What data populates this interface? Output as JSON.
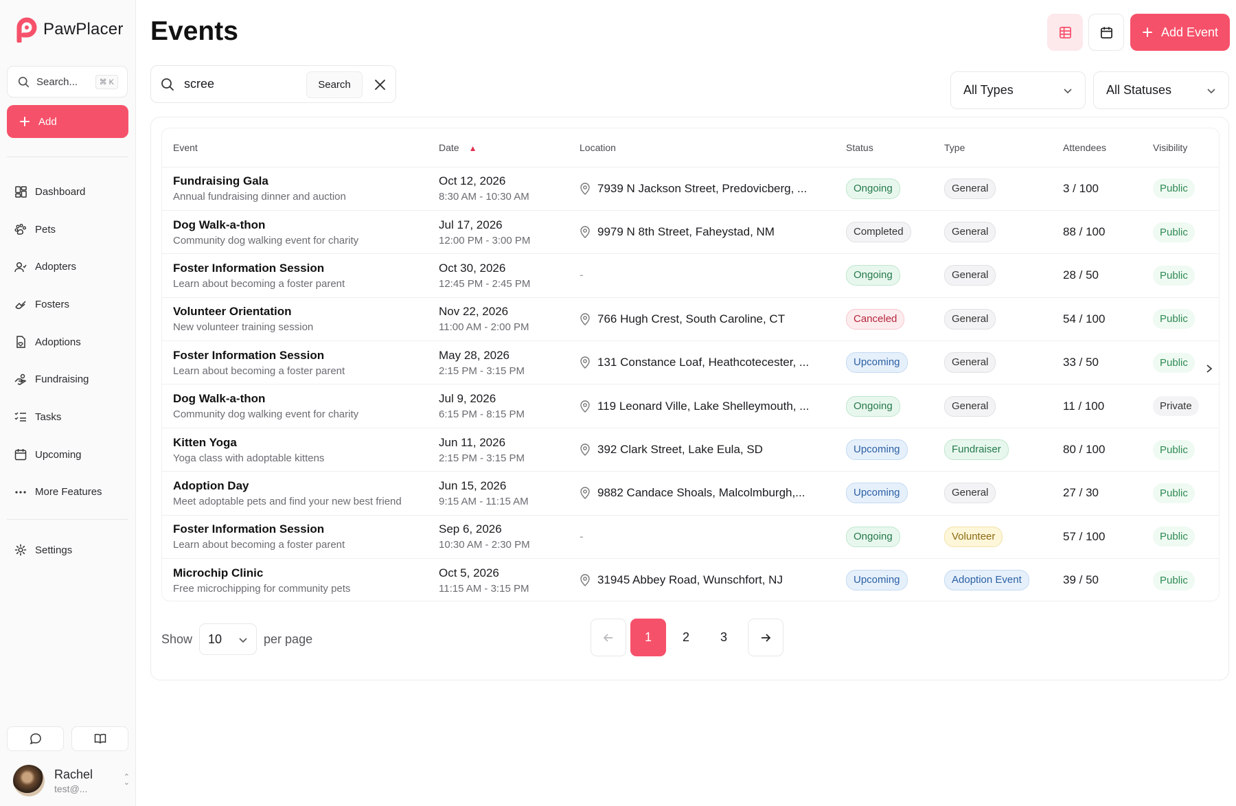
{
  "app": {
    "name": "PawPlacer",
    "brand_color": "#f6516a"
  },
  "sidebar": {
    "search_placeholder": "Search...",
    "search_shortcut": "⌘ K",
    "add_label": "Add",
    "items": [
      {
        "label": "Dashboard",
        "icon": "dashboard-icon"
      },
      {
        "label": "Pets",
        "icon": "paw-icon"
      },
      {
        "label": "Adopters",
        "icon": "adopter-icon"
      },
      {
        "label": "Fosters",
        "icon": "foster-icon"
      },
      {
        "label": "Adoptions",
        "icon": "adoption-icon"
      },
      {
        "label": "Fundraising",
        "icon": "fundraising-icon"
      },
      {
        "label": "Tasks",
        "icon": "tasks-icon"
      },
      {
        "label": "Upcoming",
        "icon": "calendar-icon"
      },
      {
        "label": "More Features",
        "icon": "more-icon"
      }
    ],
    "settings_label": "Settings",
    "user": {
      "name": "Rachel",
      "email": "test@..."
    }
  },
  "header": {
    "title": "Events",
    "add_event_label": "Add Event"
  },
  "filters": {
    "search_value": "scree",
    "search_button": "Search",
    "type_filter": "All Types",
    "status_filter": "All Statuses"
  },
  "table": {
    "columns": [
      "Event",
      "Date",
      "Location",
      "Status",
      "Type",
      "Attendees",
      "Visibility"
    ],
    "rows": [
      {
        "name": "Fundraising Gala",
        "desc": "Annual fundraising dinner and auction",
        "date": "Oct 12, 2026",
        "time": "8:30 AM - 10:30 AM",
        "location": "7939 N Jackson Street, Predovicberg, ...",
        "status": "Ongoing",
        "type": "General",
        "attendees": "3 / 100",
        "visibility": "Public"
      },
      {
        "name": "Dog Walk-a-thon",
        "desc": "Community dog walking event for charity",
        "date": "Jul 17, 2026",
        "time": "12:00 PM - 3:00 PM",
        "location": "9979 N 8th Street, Faheystad, NM",
        "status": "Completed",
        "type": "General",
        "attendees": "88 / 100",
        "visibility": "Public"
      },
      {
        "name": "Foster Information Session",
        "desc": "Learn about becoming a foster parent",
        "date": "Oct 30, 2026",
        "time": "12:45 PM - 2:45 PM",
        "location": "-",
        "status": "Ongoing",
        "type": "General",
        "attendees": "28 / 50",
        "visibility": "Public"
      },
      {
        "name": "Volunteer Orientation",
        "desc": "New volunteer training session",
        "date": "Nov 22, 2026",
        "time": "11:00 AM - 2:00 PM",
        "location": "766 Hugh Crest, South Caroline, CT",
        "status": "Canceled",
        "type": "General",
        "attendees": "54 / 100",
        "visibility": "Public"
      },
      {
        "name": "Foster Information Session",
        "desc": "Learn about becoming a foster parent",
        "date": "May 28, 2026",
        "time": "2:15 PM - 3:15 PM",
        "location": "131 Constance Loaf, Heathcotecester, ...",
        "status": "Upcoming",
        "type": "General",
        "attendees": "33 / 50",
        "visibility": "Public"
      },
      {
        "name": "Dog Walk-a-thon",
        "desc": "Community dog walking event for charity",
        "date": "Jul 9, 2026",
        "time": "6:15 PM - 8:15 PM",
        "location": "119 Leonard Ville, Lake Shelleymouth, ...",
        "status": "Ongoing",
        "type": "General",
        "attendees": "11 / 100",
        "visibility": "Private"
      },
      {
        "name": "Kitten Yoga",
        "desc": "Yoga class with adoptable kittens",
        "date": "Jun 11, 2026",
        "time": "2:15 PM - 3:15 PM",
        "location": "392 Clark Street, Lake Eula, SD",
        "status": "Upcoming",
        "type": "Fundraiser",
        "attendees": "80 / 100",
        "visibility": "Public"
      },
      {
        "name": "Adoption Day",
        "desc": "Meet adoptable pets and find your new best friend",
        "date": "Jun 15, 2026",
        "time": "9:15 AM - 11:15 AM",
        "location": "9882 Candace Shoals, Malcolmburgh,...",
        "status": "Upcoming",
        "type": "General",
        "attendees": "27 / 30",
        "visibility": "Public"
      },
      {
        "name": "Foster Information Session",
        "desc": "Learn about becoming a foster parent",
        "date": "Sep 6, 2026",
        "time": "10:30 AM - 2:30 PM",
        "location": "-",
        "status": "Ongoing",
        "type": "Volunteer",
        "attendees": "57 / 100",
        "visibility": "Public"
      },
      {
        "name": "Microchip Clinic",
        "desc": "Free microchipping for community pets",
        "date": "Oct 5, 2026",
        "time": "11:15 AM - 3:15 PM",
        "location": "31945 Abbey Road, Wunschfort, NJ",
        "status": "Upcoming",
        "type": "Adoption Event",
        "attendees": "39 / 50",
        "visibility": "Public"
      }
    ]
  },
  "pagination": {
    "show_label": "Show",
    "per_page_value": "10",
    "per_page_label": "per page",
    "pages": [
      "1",
      "2",
      "3"
    ],
    "current": "1"
  }
}
